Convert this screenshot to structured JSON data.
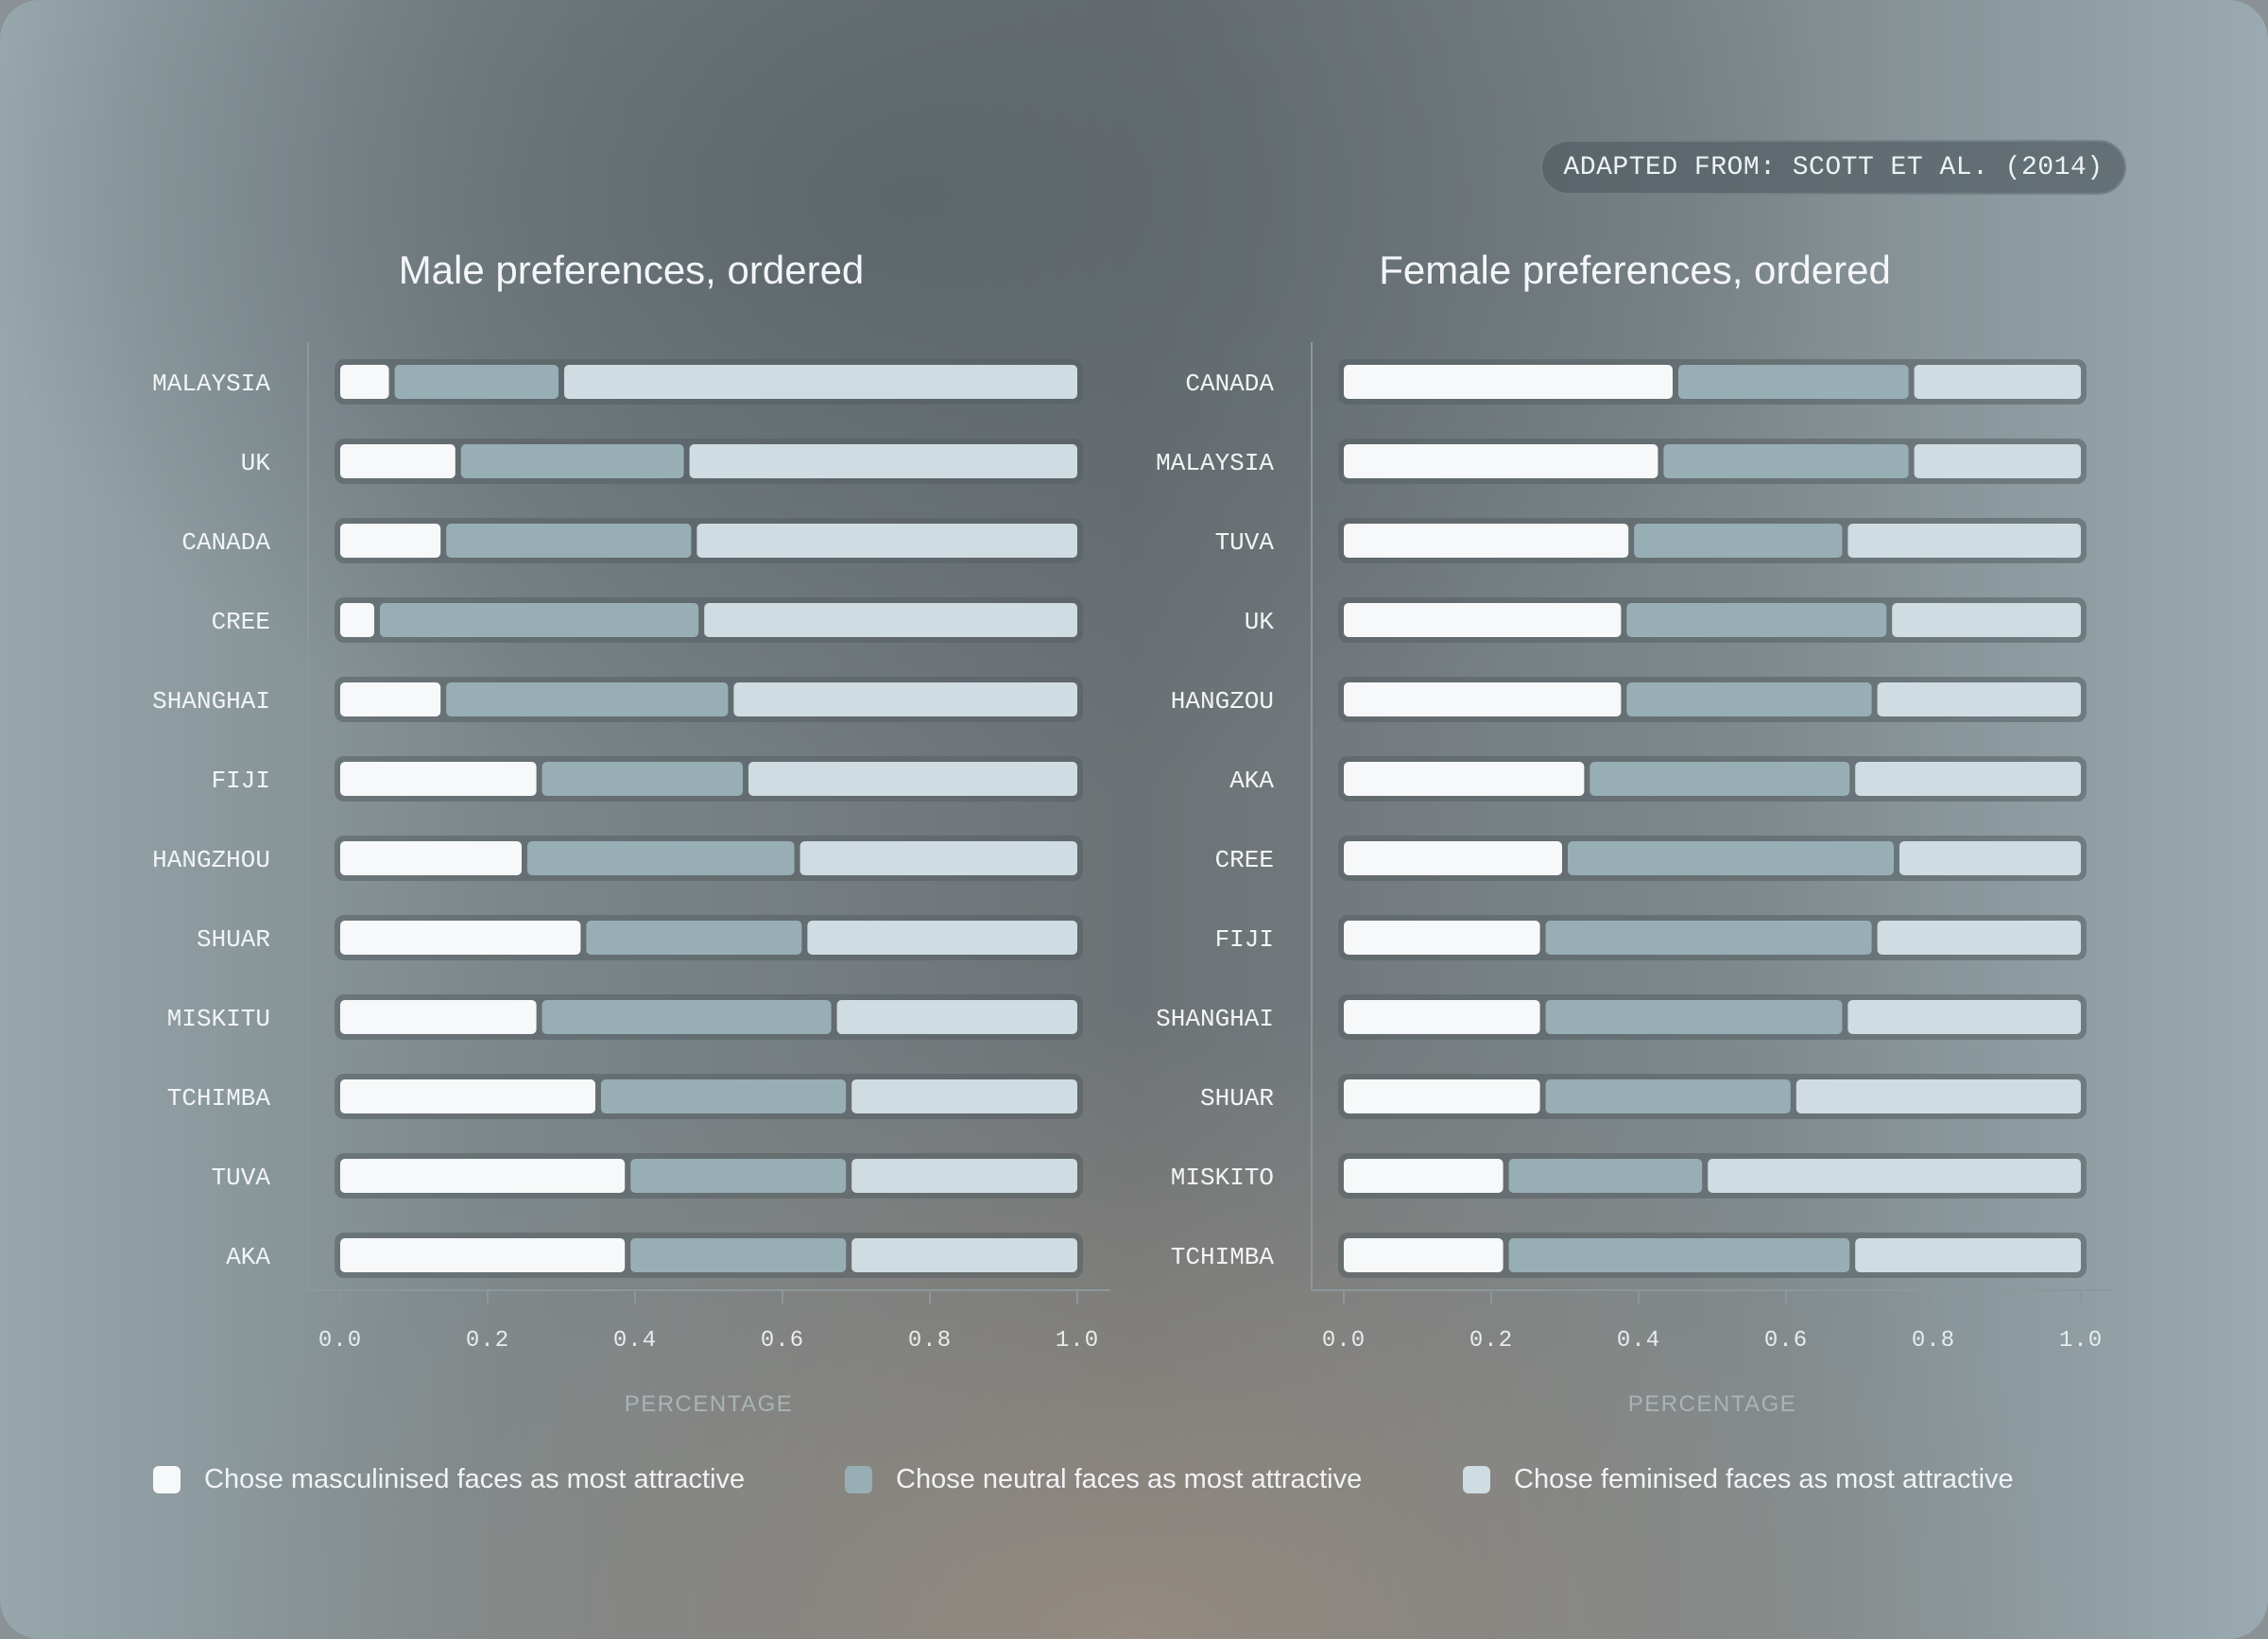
{
  "source_badge": "ADAPTED FROM: SCOTT ET AL. (2014)",
  "colors": {
    "masculinised": "#f6f8f9",
    "neutral": "#98aeb5",
    "feminised": "#cfdce2",
    "track": "#565f63",
    "axis": "#8b979b",
    "tick_text": "#e8ecee",
    "axis_label": "#a9b4b8"
  },
  "legend": [
    {
      "key": "masculinised",
      "label": "Chose masculinised faces as most attractive"
    },
    {
      "key": "neutral",
      "label": "Chose neutral faces as most attractive"
    },
    {
      "key": "feminised",
      "label": "Chose feminised faces as most attractive"
    }
  ],
  "chart_data": [
    {
      "type": "bar",
      "stacked": true,
      "orientation": "horizontal",
      "title": "Male preferences, ordered",
      "xlabel": "PERCENTAGE",
      "xlim": [
        0,
        1
      ],
      "xticks": [
        "0.0",
        "0.2",
        "0.4",
        "0.6",
        "0.8",
        "1.0"
      ],
      "categories": [
        "MALAYSIA",
        "UK",
        "CANADA",
        "CREE",
        "SHANGHAI",
        "FIJI",
        "HANGZHOU",
        "SHUAR",
        "MISKITU",
        "TCHIMBA",
        "TUVA",
        "AKA"
      ],
      "series": [
        {
          "name": "Chose masculinised faces as most attractive",
          "key": "masculinised",
          "values": [
            0.07,
            0.16,
            0.14,
            0.05,
            0.14,
            0.27,
            0.25,
            0.33,
            0.27,
            0.35,
            0.39,
            0.39
          ]
        },
        {
          "name": "Chose neutral faces as most attractive",
          "key": "neutral",
          "values": [
            0.23,
            0.31,
            0.34,
            0.44,
            0.39,
            0.28,
            0.37,
            0.3,
            0.4,
            0.34,
            0.3,
            0.3
          ]
        },
        {
          "name": "Chose feminised faces as most attractive",
          "key": "feminised",
          "values": [
            0.7,
            0.53,
            0.52,
            0.51,
            0.47,
            0.45,
            0.38,
            0.37,
            0.33,
            0.31,
            0.31,
            0.31
          ]
        }
      ]
    },
    {
      "type": "bar",
      "stacked": true,
      "orientation": "horizontal",
      "title": "Female preferences, ordered",
      "xlabel": "PERCENTAGE",
      "xlim": [
        0,
        1
      ],
      "xticks": [
        "0.0",
        "0.2",
        "0.4",
        "0.6",
        "0.8",
        "1.0"
      ],
      "categories": [
        "CANADA",
        "MALAYSIA",
        "TUVA",
        "UK",
        "HANGZOU",
        "AKA",
        "CREE",
        "FIJI",
        "SHANGHAI",
        "SHUAR",
        "MISKITO",
        "TCHIMBA"
      ],
      "series": [
        {
          "name": "Chose masculinised faces as most attractive",
          "key": "masculinised",
          "values": [
            0.45,
            0.43,
            0.39,
            0.38,
            0.38,
            0.33,
            0.3,
            0.27,
            0.27,
            0.27,
            0.22,
            0.22
          ]
        },
        {
          "name": "Chose neutral faces as most attractive",
          "key": "neutral",
          "values": [
            0.32,
            0.34,
            0.29,
            0.36,
            0.34,
            0.36,
            0.45,
            0.45,
            0.41,
            0.34,
            0.27,
            0.47
          ]
        },
        {
          "name": "Chose feminised faces as most attractive",
          "key": "feminised",
          "values": [
            0.23,
            0.23,
            0.32,
            0.26,
            0.28,
            0.31,
            0.25,
            0.28,
            0.32,
            0.39,
            0.51,
            0.31
          ]
        }
      ]
    }
  ]
}
